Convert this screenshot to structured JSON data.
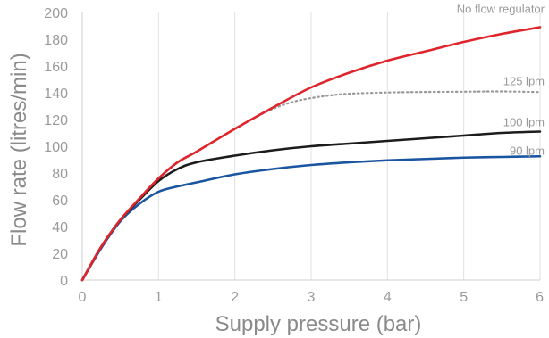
{
  "chart_data": {
    "type": "line",
    "xlabel": "Supply pressure (bar)",
    "ylabel": "Flow rate (litres/min)",
    "xlim": [
      0,
      6
    ],
    "ylim": [
      0,
      200
    ],
    "x_ticks": [
      0,
      1,
      2,
      3,
      4,
      5,
      6
    ],
    "y_ticks": [
      0,
      20,
      40,
      60,
      80,
      100,
      120,
      140,
      160,
      180,
      200
    ],
    "grid": "vertical",
    "series": [
      {
        "name": "No flow regulator",
        "color": "#e0242c",
        "style": "solid",
        "points": [
          [
            0,
            0
          ],
          [
            0.25,
            25
          ],
          [
            0.5,
            45
          ],
          [
            0.75,
            61
          ],
          [
            1,
            76
          ],
          [
            1.25,
            88
          ],
          [
            1.5,
            96
          ],
          [
            2,
            113
          ],
          [
            2.5,
            129
          ],
          [
            3,
            144
          ],
          [
            3.5,
            155
          ],
          [
            4,
            164
          ],
          [
            4.5,
            171
          ],
          [
            5,
            178
          ],
          [
            5.5,
            184
          ],
          [
            6,
            189
          ]
        ]
      },
      {
        "name": "125 lpm",
        "color": "#999999",
        "style": "dotted",
        "points": [
          [
            2,
            113
          ],
          [
            2.25,
            121
          ],
          [
            2.5,
            128
          ],
          [
            2.75,
            133
          ],
          [
            3,
            136
          ],
          [
            3.25,
            138
          ],
          [
            3.5,
            139.3
          ],
          [
            4,
            140.2
          ],
          [
            4.5,
            140.6
          ],
          [
            5,
            140.8
          ],
          [
            5.5,
            141
          ],
          [
            6,
            140.5
          ]
        ]
      },
      {
        "name": "100 lpm",
        "color": "#1c1c1c",
        "style": "solid",
        "points": [
          [
            0,
            0
          ],
          [
            0.25,
            25
          ],
          [
            0.5,
            45
          ],
          [
            0.75,
            60
          ],
          [
            1,
            74
          ],
          [
            1.25,
            83
          ],
          [
            1.5,
            88
          ],
          [
            2,
            93
          ],
          [
            2.5,
            97
          ],
          [
            3,
            100
          ],
          [
            3.5,
            102
          ],
          [
            4,
            104
          ],
          [
            4.5,
            106
          ],
          [
            5,
            108
          ],
          [
            5.5,
            110
          ],
          [
            6,
            111
          ]
        ]
      },
      {
        "name": "90 lpm",
        "color": "#1a55a0",
        "style": "solid",
        "points": [
          [
            0,
            0
          ],
          [
            0.25,
            24
          ],
          [
            0.5,
            44
          ],
          [
            0.75,
            57
          ],
          [
            1,
            66
          ],
          [
            1.25,
            70
          ],
          [
            1.5,
            73
          ],
          [
            2,
            79
          ],
          [
            2.5,
            83
          ],
          [
            3,
            86
          ],
          [
            3.5,
            88
          ],
          [
            4,
            89.5
          ],
          [
            4.5,
            90.5
          ],
          [
            5,
            91.5
          ],
          [
            5.5,
            92
          ],
          [
            6,
            92.5
          ]
        ]
      }
    ]
  }
}
